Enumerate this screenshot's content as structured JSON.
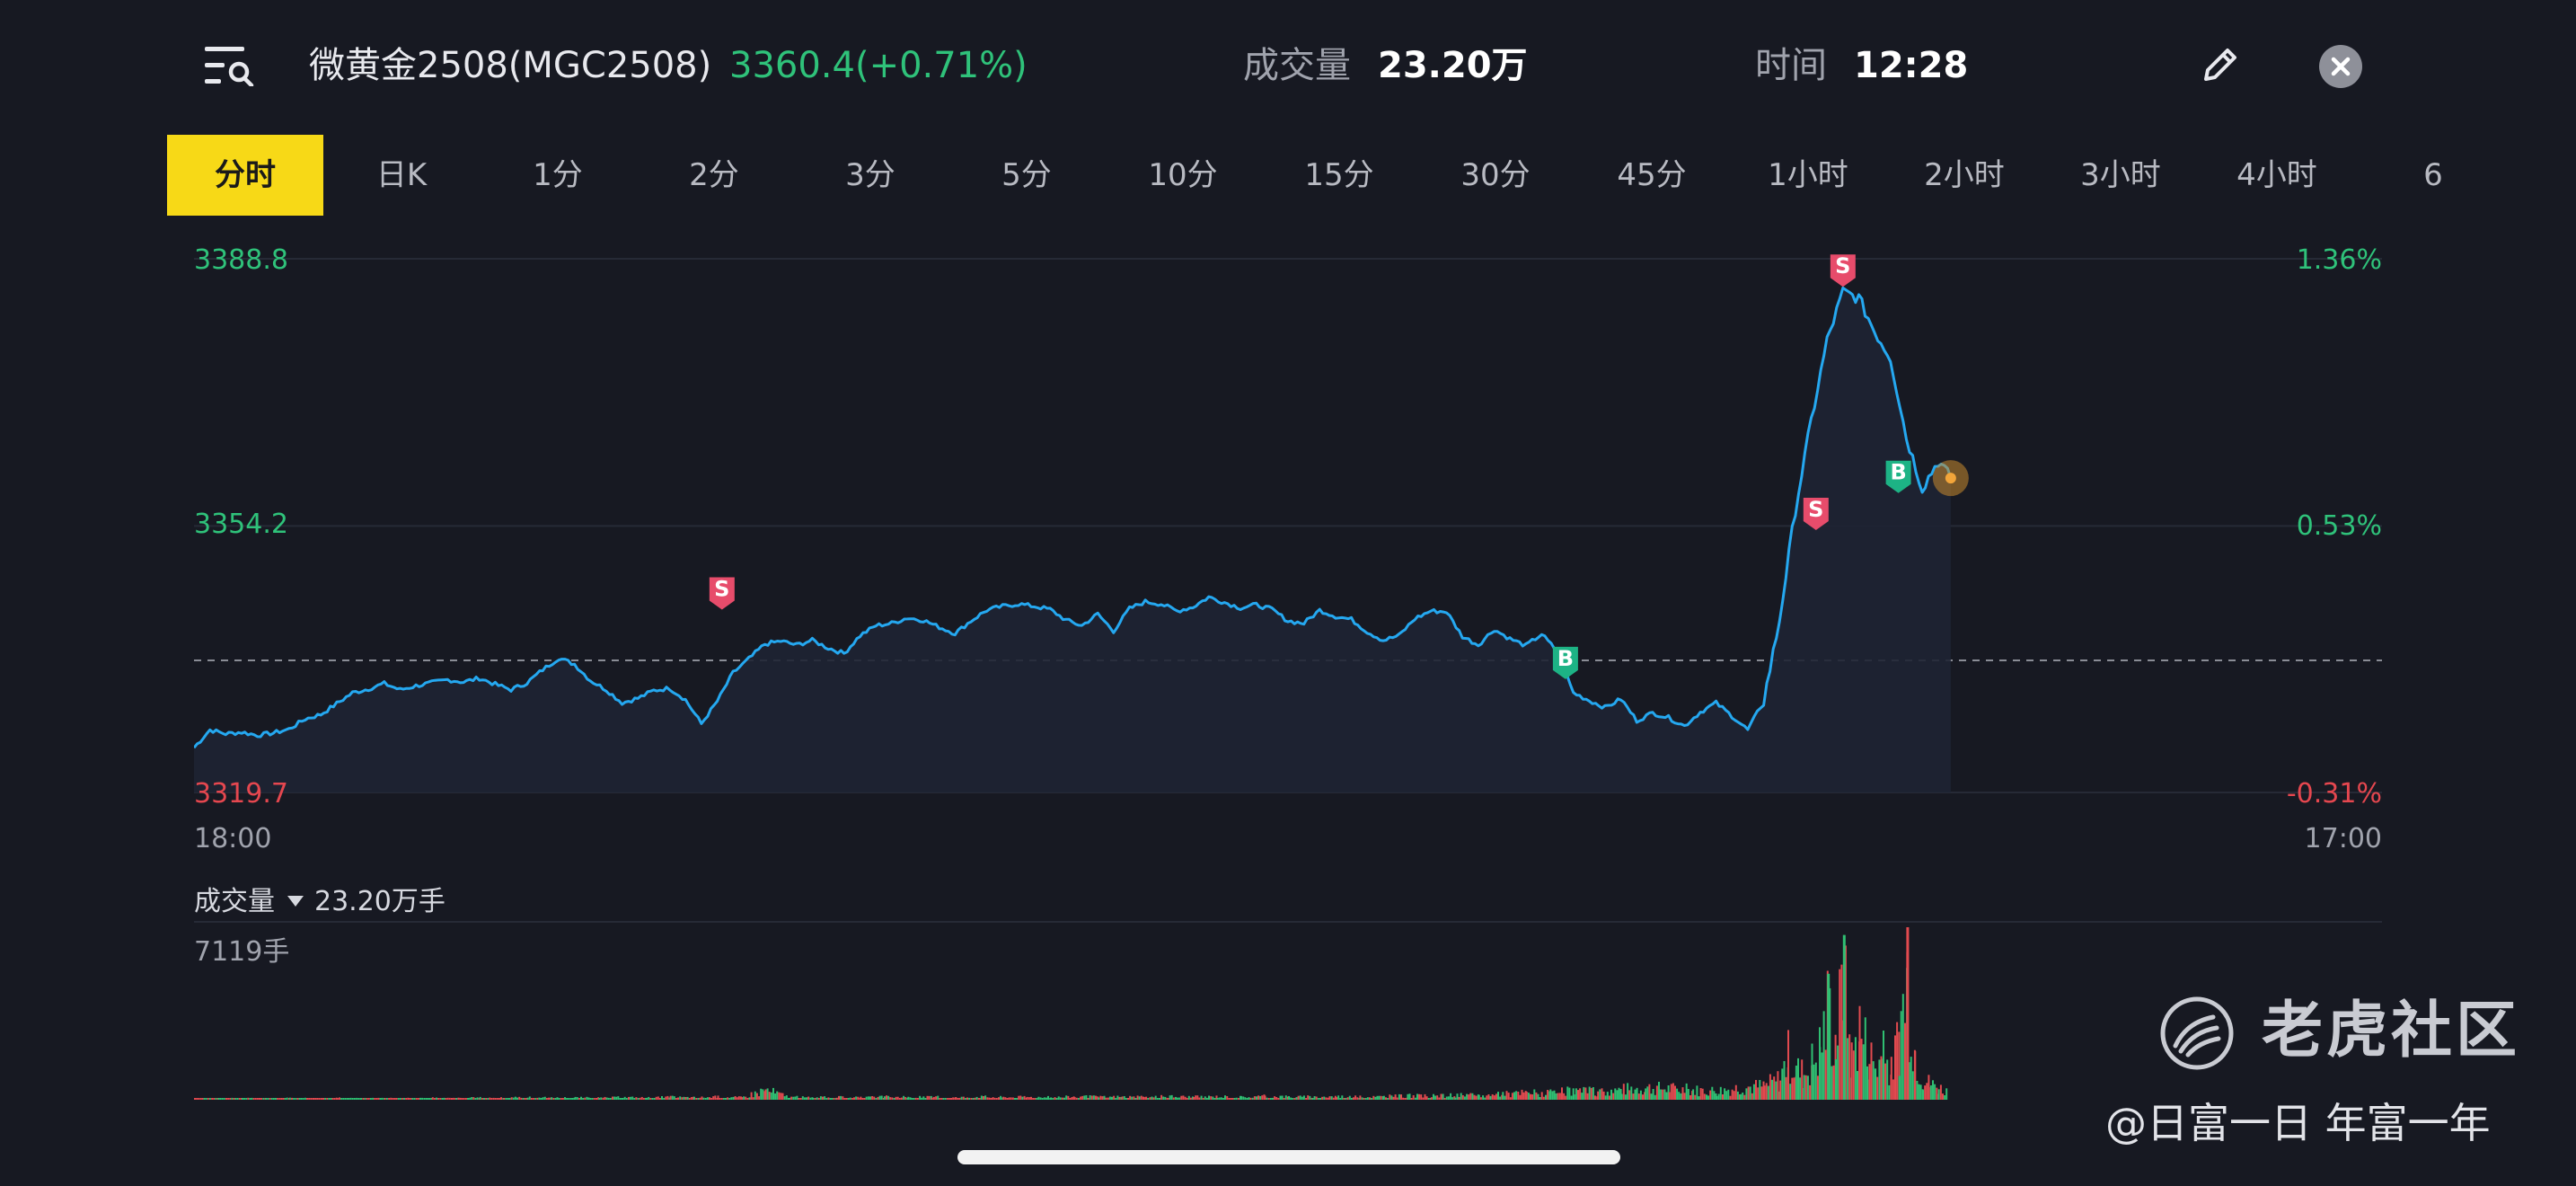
{
  "header": {
    "symbol": "微黄金2508(MGC2508)",
    "price_change": "3360.4(+0.71%)",
    "volume_label": "成交量",
    "volume_value": "23.20万",
    "time_label": "时间",
    "time_value": "12:28"
  },
  "tabs": [
    "分时",
    "日K",
    "1分",
    "2分",
    "3分",
    "5分",
    "10分",
    "15分",
    "30分",
    "45分",
    "1小时",
    "2小时",
    "3小时",
    "4小时",
    "6"
  ],
  "active_tab": 0,
  "chart_data": {
    "type": "line",
    "yaxis_left": [
      "3388.8",
      "3354.2",
      "3319.7"
    ],
    "yaxis_right": [
      "1.36%",
      "0.53%",
      "-0.31%"
    ],
    "ylim": [
      3319.7,
      3388.8
    ],
    "baseline": 3336.8,
    "x_start": "18:00",
    "x_end": "17:00",
    "total_minutes": 1380,
    "elapsed_minutes": 1108,
    "last_price": 3360.4,
    "price_points": [
      [
        0,
        3325.5
      ],
      [
        10,
        3327.8
      ],
      [
        20,
        3327.3
      ],
      [
        30,
        3327.5
      ],
      [
        40,
        3327.1
      ],
      [
        50,
        3327.4
      ],
      [
        60,
        3327.9
      ],
      [
        70,
        3329.2
      ],
      [
        80,
        3329.8
      ],
      [
        90,
        3331.2
      ],
      [
        100,
        3332.6
      ],
      [
        110,
        3333.1
      ],
      [
        120,
        3333.8
      ],
      [
        130,
        3333.0
      ],
      [
        140,
        3333.5
      ],
      [
        150,
        3333.9
      ],
      [
        160,
        3334.3
      ],
      [
        170,
        3334.0
      ],
      [
        180,
        3334.5
      ],
      [
        190,
        3333.7
      ],
      [
        200,
        3333.0
      ],
      [
        210,
        3333.9
      ],
      [
        220,
        3335.6
      ],
      [
        230,
        3337.1
      ],
      [
        240,
        3336.3
      ],
      [
        250,
        3334.2
      ],
      [
        260,
        3333.0
      ],
      [
        270,
        3331.3
      ],
      [
        280,
        3331.9
      ],
      [
        290,
        3332.9
      ],
      [
        300,
        3333.2
      ],
      [
        310,
        3331.7
      ],
      [
        320,
        3328.6
      ],
      [
        330,
        3331.5
      ],
      [
        340,
        3335.2
      ],
      [
        350,
        3337.0
      ],
      [
        360,
        3338.9
      ],
      [
        370,
        3339.3
      ],
      [
        380,
        3338.8
      ],
      [
        390,
        3339.4
      ],
      [
        400,
        3338.4
      ],
      [
        410,
        3337.7
      ],
      [
        420,
        3340.0
      ],
      [
        430,
        3341.3
      ],
      [
        440,
        3341.6
      ],
      [
        450,
        3342.3
      ],
      [
        460,
        3342.0
      ],
      [
        470,
        3341.1
      ],
      [
        480,
        3340.3
      ],
      [
        490,
        3341.9
      ],
      [
        500,
        3343.3
      ],
      [
        510,
        3343.8
      ],
      [
        520,
        3344.1
      ],
      [
        530,
        3343.8
      ],
      [
        540,
        3343.4
      ],
      [
        550,
        3342.0
      ],
      [
        560,
        3341.3
      ],
      [
        570,
        3342.8
      ],
      [
        580,
        3340.6
      ],
      [
        590,
        3343.5
      ],
      [
        600,
        3344.4
      ],
      [
        610,
        3344.1
      ],
      [
        620,
        3343.2
      ],
      [
        630,
        3343.7
      ],
      [
        640,
        3345.0
      ],
      [
        650,
        3344.3
      ],
      [
        660,
        3343.6
      ],
      [
        670,
        3344.0
      ],
      [
        680,
        3343.4
      ],
      [
        690,
        3341.9
      ],
      [
        700,
        3341.6
      ],
      [
        710,
        3343.3
      ],
      [
        720,
        3342.5
      ],
      [
        730,
        3342.1
      ],
      [
        740,
        3340.5
      ],
      [
        750,
        3339.4
      ],
      [
        760,
        3340.0
      ],
      [
        770,
        3342.2
      ],
      [
        780,
        3343.2
      ],
      [
        790,
        3343.1
      ],
      [
        800,
        3339.9
      ],
      [
        810,
        3338.8
      ],
      [
        820,
        3340.8
      ],
      [
        830,
        3339.6
      ],
      [
        840,
        3338.7
      ],
      [
        850,
        3340.2
      ],
      [
        860,
        3337.9
      ],
      [
        870,
        3332.6
      ],
      [
        880,
        3331.6
      ],
      [
        890,
        3330.7
      ],
      [
        900,
        3331.8
      ],
      [
        910,
        3329.0
      ],
      [
        920,
        3330.0
      ],
      [
        930,
        3329.4
      ],
      [
        940,
        3328.3
      ],
      [
        950,
        3330.1
      ],
      [
        960,
        3331.3
      ],
      [
        970,
        3329.6
      ],
      [
        980,
        3327.8
      ],
      [
        990,
        3331.5
      ],
      [
        1000,
        3342.0
      ],
      [
        1010,
        3356.3
      ],
      [
        1020,
        3367.8
      ],
      [
        1030,
        3378.2
      ],
      [
        1040,
        3384.5
      ],
      [
        1050,
        3383.7
      ],
      [
        1060,
        3379.4
      ],
      [
        1070,
        3376.0
      ],
      [
        1080,
        3365.7
      ],
      [
        1090,
        3359.1
      ],
      [
        1100,
        3362.6
      ],
      [
        1108,
        3360.4
      ]
    ],
    "markers": [
      {
        "label": "S",
        "t": 333,
        "price": 3343.6,
        "color": "#e74c6b"
      },
      {
        "label": "B",
        "t": 865,
        "price": 3334.6,
        "color": "#1db385"
      },
      {
        "label": "S",
        "t": 1023,
        "price": 3353.9,
        "color": "#e74c6b"
      },
      {
        "label": "S",
        "t": 1040,
        "price": 3385.4,
        "color": "#e74c6b"
      },
      {
        "label": "B",
        "t": 1075,
        "price": 3358.7,
        "color": "#1db385"
      }
    ],
    "volume": {
      "label": "成交量",
      "total": "23.20万手",
      "max_label": "7119手",
      "max": 7119,
      "bars": [
        [
          0,
          70
        ],
        [
          15,
          60
        ],
        [
          30,
          80
        ],
        [
          45,
          55
        ],
        [
          60,
          90
        ],
        [
          75,
          60
        ],
        [
          90,
          85
        ],
        [
          105,
          70
        ],
        [
          120,
          100
        ],
        [
          135,
          75
        ],
        [
          150,
          95
        ],
        [
          165,
          80
        ],
        [
          180,
          110
        ],
        [
          195,
          90
        ],
        [
          210,
          130
        ],
        [
          225,
          100
        ],
        [
          240,
          120
        ],
        [
          255,
          95
        ],
        [
          270,
          140
        ],
        [
          285,
          110
        ],
        [
          300,
          150
        ],
        [
          315,
          120
        ],
        [
          330,
          160
        ],
        [
          345,
          130
        ],
        [
          360,
          600
        ],
        [
          375,
          150
        ],
        [
          390,
          120
        ],
        [
          405,
          140
        ],
        [
          420,
          110
        ],
        [
          435,
          160
        ],
        [
          450,
          130
        ],
        [
          465,
          150
        ],
        [
          480,
          120
        ],
        [
          495,
          170
        ],
        [
          510,
          140
        ],
        [
          525,
          160
        ],
        [
          540,
          130
        ],
        [
          555,
          180
        ],
        [
          570,
          150
        ],
        [
          585,
          170
        ],
        [
          600,
          140
        ],
        [
          615,
          190
        ],
        [
          630,
          160
        ],
        [
          645,
          180
        ],
        [
          660,
          150
        ],
        [
          675,
          200
        ],
        [
          690,
          170
        ],
        [
          705,
          160
        ],
        [
          720,
          190
        ],
        [
          735,
          150
        ],
        [
          750,
          180
        ],
        [
          765,
          220
        ],
        [
          780,
          200
        ],
        [
          795,
          260
        ],
        [
          810,
          240
        ],
        [
          825,
          300
        ],
        [
          840,
          420
        ],
        [
          855,
          380
        ],
        [
          870,
          520
        ],
        [
          885,
          460
        ],
        [
          900,
          600
        ],
        [
          915,
          700
        ],
        [
          930,
          650
        ],
        [
          945,
          560
        ],
        [
          960,
          520
        ],
        [
          975,
          720
        ],
        [
          990,
          800
        ],
        [
          1000,
          1200
        ],
        [
          1005,
          2600
        ],
        [
          1010,
          1800
        ],
        [
          1015,
          1500
        ],
        [
          1020,
          2200
        ],
        [
          1025,
          3000
        ],
        [
          1030,
          5200
        ],
        [
          1035,
          3400
        ],
        [
          1040,
          6800
        ],
        [
          1045,
          2400
        ],
        [
          1050,
          4200
        ],
        [
          1055,
          2900
        ],
        [
          1060,
          1900
        ],
        [
          1065,
          2500
        ],
        [
          1070,
          1600
        ],
        [
          1075,
          3800
        ],
        [
          1080,
          7119
        ],
        [
          1085,
          2800
        ],
        [
          1090,
          1200
        ],
        [
          1095,
          900
        ],
        [
          1100,
          700
        ],
        [
          1105,
          500
        ]
      ]
    }
  },
  "watermark": {
    "brand": "老虎社区",
    "author": "@日富一日 年富一年"
  }
}
